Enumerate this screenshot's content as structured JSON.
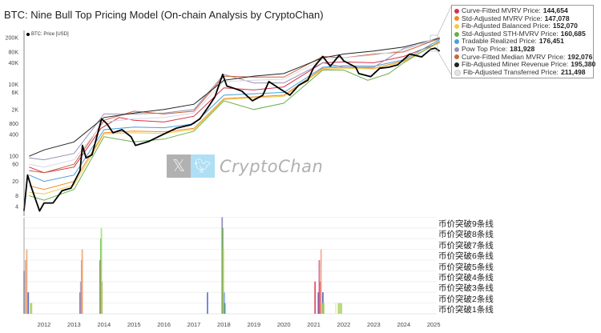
{
  "title": "BTC: Nine Bull Top Pricing Model (On-chain Analysis by CryptoChan)",
  "watermark": {
    "brand": "CryptoChan",
    "x_icon": "x-logo-icon",
    "twitter_icon": "twitter-bird-icon"
  },
  "legend": [
    {
      "label": "Curve-Fitted MVRV Price:",
      "value": "144,654",
      "color": "#d6334a"
    },
    {
      "label": "Std-Adjusted MVRV Price:",
      "value": "147,078",
      "color": "#f08a24"
    },
    {
      "label": "Fib-Adjusted Balanced Price:",
      "value": "152,070",
      "color": "#f2c94c"
    },
    {
      "label": "Std-Adjusted STH-MVRV Price:",
      "value": "160,685",
      "color": "#6ab04c"
    },
    {
      "label": "Tradable Realized Price:",
      "value": "176,451",
      "color": "#4a9fd8"
    },
    {
      "label": "Pow Top Price:",
      "value": "181,928",
      "color": "#9a8fb5"
    },
    {
      "label": "Curve-Fitted Median MVRV Price:",
      "value": "192,076",
      "color": "#c8643c"
    },
    {
      "label": "Fib-Adjusted Miner Revenue Price:",
      "value": "195,380",
      "color": "#222222"
    },
    {
      "label": "Fib-Adjusted Transferred Price:",
      "value": "211,498",
      "color": "#e4e4ee"
    }
  ],
  "chart_data": [
    {
      "type": "line",
      "scale": "log",
      "price_legend": "BTC: Price [USD]",
      "y_ticks": [
        {
          "v": 200000,
          "label": "200K"
        },
        {
          "v": 80000,
          "label": "80K"
        },
        {
          "v": 40000,
          "label": "40K"
        },
        {
          "v": 10000,
          "label": "10K"
        },
        {
          "v": 6000,
          "label": "6K"
        },
        {
          "v": 2000,
          "label": "2K"
        },
        {
          "v": 800,
          "label": "800"
        },
        {
          "v": 400,
          "label": "400"
        },
        {
          "v": 100,
          "label": "100"
        },
        {
          "v": 60,
          "label": "60"
        },
        {
          "v": 20,
          "label": "20"
        },
        {
          "v": 8,
          "label": "8"
        },
        {
          "v": 4,
          "label": "4"
        }
      ],
      "xlim": [
        2011.33,
        2025.2
      ],
      "ylim": [
        1.6,
        280000
      ],
      "price": {
        "name": "BTC: Price [USD]",
        "color": "#000000",
        "points": [
          [
            2011.33,
            3
          ],
          [
            2011.45,
            30
          ],
          [
            2011.6,
            12
          ],
          [
            2011.85,
            3
          ],
          [
            2012.0,
            5
          ],
          [
            2012.3,
            5
          ],
          [
            2012.6,
            11
          ],
          [
            2012.9,
            13
          ],
          [
            2013.2,
            40
          ],
          [
            2013.28,
            200
          ],
          [
            2013.4,
            90
          ],
          [
            2013.6,
            110
          ],
          [
            2013.92,
            1100
          ],
          [
            2014.1,
            800
          ],
          [
            2014.3,
            450
          ],
          [
            2014.6,
            550
          ],
          [
            2014.9,
            350
          ],
          [
            2015.05,
            200
          ],
          [
            2015.5,
            260
          ],
          [
            2015.9,
            380
          ],
          [
            2016.4,
            600
          ],
          [
            2016.9,
            750
          ],
          [
            2017.2,
            1100
          ],
          [
            2017.5,
            2500
          ],
          [
            2017.7,
            4500
          ],
          [
            2017.96,
            19000
          ],
          [
            2018.1,
            9000
          ],
          [
            2018.3,
            8000
          ],
          [
            2018.6,
            6500
          ],
          [
            2018.95,
            3500
          ],
          [
            2019.3,
            5000
          ],
          [
            2019.5,
            12000
          ],
          [
            2019.9,
            7200
          ],
          [
            2020.2,
            5000
          ],
          [
            2020.5,
            9500
          ],
          [
            2020.8,
            13000
          ],
          [
            2021.0,
            30000
          ],
          [
            2021.3,
            60000
          ],
          [
            2021.55,
            32000
          ],
          [
            2021.85,
            65000
          ],
          [
            2022.0,
            45000
          ],
          [
            2022.4,
            30000
          ],
          [
            2022.5,
            20000
          ],
          [
            2022.9,
            16500
          ],
          [
            2023.2,
            28000
          ],
          [
            2023.5,
            30000
          ],
          [
            2023.8,
            35000
          ],
          [
            2024.2,
            70000
          ],
          [
            2024.6,
            58000
          ],
          [
            2024.9,
            95000
          ],
          [
            2025.05,
            102000
          ],
          [
            2025.2,
            84000
          ]
        ]
      },
      "series": [
        {
          "name": "Curve-Fitted MVRV Price",
          "color": "#d6334a",
          "points": [
            [
              2011.5,
              50
            ],
            [
              2012,
              35
            ],
            [
              2013,
              50
            ],
            [
              2013.9,
              600
            ],
            [
              2014.5,
              1200
            ],
            [
              2015,
              1000
            ],
            [
              2016,
              900
            ],
            [
              2017,
              1300
            ],
            [
              2018,
              8000
            ],
            [
              2019,
              7000
            ],
            [
              2020,
              8500
            ],
            [
              2021.3,
              40000
            ],
            [
              2022,
              42000
            ],
            [
              2023,
              40000
            ],
            [
              2024,
              60000
            ],
            [
              2025.2,
              144654
            ]
          ]
        },
        {
          "name": "Std-Adjusted MVRV Price",
          "color": "#f08a24",
          "points": [
            [
              2011.5,
              15
            ],
            [
              2012,
              12
            ],
            [
              2013,
              20
            ],
            [
              2014,
              450
            ],
            [
              2015,
              500
            ],
            [
              2016,
              480
            ],
            [
              2017,
              600
            ],
            [
              2018,
              4000
            ],
            [
              2019,
              4500
            ],
            [
              2020,
              5000
            ],
            [
              2021.3,
              28000
            ],
            [
              2022,
              30000
            ],
            [
              2023,
              28000
            ],
            [
              2024,
              45000
            ],
            [
              2025.2,
              147078
            ]
          ]
        },
        {
          "name": "Fib-Adjusted Balanced Price",
          "color": "#f2c94c",
          "points": [
            [
              2011.5,
              10
            ],
            [
              2012,
              9
            ],
            [
              2013,
              16
            ],
            [
              2014,
              420
            ],
            [
              2015,
              450
            ],
            [
              2016,
              430
            ],
            [
              2017,
              560
            ],
            [
              2018,
              3800
            ],
            [
              2019,
              4200
            ],
            [
              2020,
              4700
            ],
            [
              2021.3,
              26000
            ],
            [
              2022,
              28000
            ],
            [
              2023,
              27000
            ],
            [
              2024,
              43000
            ],
            [
              2025.2,
              152070
            ]
          ]
        },
        {
          "name": "Std-Adjusted STH-MVRV Price",
          "color": "#6ab04c",
          "points": [
            [
              2011.5,
              8
            ],
            [
              2012,
              6
            ],
            [
              2013,
              12
            ],
            [
              2014,
              350
            ],
            [
              2015,
              250
            ],
            [
              2016,
              300
            ],
            [
              2017,
              500
            ],
            [
              2018,
              3500
            ],
            [
              2019,
              2000
            ],
            [
              2020,
              3000
            ],
            [
              2021.3,
              25000
            ],
            [
              2022,
              25000
            ],
            [
              2022.8,
              13000
            ],
            [
              2023.5,
              20000
            ],
            [
              2024,
              40000
            ],
            [
              2025.2,
              160685
            ]
          ]
        },
        {
          "name": "Tradable Realized Price",
          "color": "#4a9fd8",
          "points": [
            [
              2011.5,
              30
            ],
            [
              2012,
              20
            ],
            [
              2013,
              30
            ],
            [
              2014,
              550
            ],
            [
              2015,
              650
            ],
            [
              2016,
              620
            ],
            [
              2017,
              800
            ],
            [
              2018,
              5000
            ],
            [
              2019,
              5500
            ],
            [
              2020,
              6000
            ],
            [
              2021.3,
              30000
            ],
            [
              2022,
              33000
            ],
            [
              2023,
              32000
            ],
            [
              2024,
              48000
            ],
            [
              2025.2,
              176451
            ]
          ]
        },
        {
          "name": "Pow Top Price",
          "color": "#9a8fb5",
          "points": [
            [
              2011.5,
              90
            ],
            [
              2012,
              80
            ],
            [
              2013,
              120
            ],
            [
              2014,
              1500
            ],
            [
              2015,
              1500
            ],
            [
              2016,
              1600
            ],
            [
              2017,
              2000
            ],
            [
              2018,
              19000
            ],
            [
              2019,
              11000
            ],
            [
              2020,
              11000
            ],
            [
              2021.3,
              40000
            ],
            [
              2022,
              30000
            ],
            [
              2023,
              30000
            ],
            [
              2024,
              100000
            ],
            [
              2025.2,
              181928
            ]
          ]
        },
        {
          "name": "Curve-Fitted Median MVRV Price",
          "color": "#c8643c",
          "points": [
            [
              2011.5,
              40
            ],
            [
              2012,
              35
            ],
            [
              2013,
              60
            ],
            [
              2014,
              1000
            ],
            [
              2015,
              1800
            ],
            [
              2016,
              1500
            ],
            [
              2017,
              1800
            ],
            [
              2018,
              17000
            ],
            [
              2019,
              16000
            ],
            [
              2020,
              16000
            ],
            [
              2021.3,
              60000
            ],
            [
              2022,
              55000
            ],
            [
              2023,
              70000
            ],
            [
              2024,
              80000
            ],
            [
              2025.2,
              192076
            ]
          ]
        },
        {
          "name": "Fib-Adjusted Miner Revenue Price",
          "color": "#222222",
          "points": [
            [
              2011.5,
              100
            ],
            [
              2012,
              150
            ],
            [
              2013,
              250
            ],
            [
              2014,
              1200
            ],
            [
              2015,
              1600
            ],
            [
              2016,
              2000
            ],
            [
              2017,
              2800
            ],
            [
              2018,
              13000
            ],
            [
              2019,
              17000
            ],
            [
              2020,
              20000
            ],
            [
              2021.3,
              55000
            ],
            [
              2022,
              70000
            ],
            [
              2023,
              85000
            ],
            [
              2024,
              110000
            ],
            [
              2025.2,
              195380
            ]
          ]
        },
        {
          "name": "Fib-Adjusted Transferred Price",
          "color": "#d8d8e6",
          "points": [
            [
              2011.5,
              60
            ],
            [
              2012,
              50
            ],
            [
              2013,
              80
            ],
            [
              2014,
              900
            ],
            [
              2015,
              1100
            ],
            [
              2016,
              1200
            ],
            [
              2017,
              1600
            ],
            [
              2018,
              12000
            ],
            [
              2019,
              13000
            ],
            [
              2020,
              14000
            ],
            [
              2021.3,
              50000
            ],
            [
              2022,
              55000
            ],
            [
              2023,
              65000
            ],
            [
              2024,
              90000
            ],
            [
              2025.2,
              211498
            ]
          ]
        }
      ]
    },
    {
      "type": "bar",
      "x_ticks": [
        "2012",
        "2013",
        "2014",
        "2015",
        "2016",
        "2017",
        "2018",
        "2019",
        "2020",
        "2021",
        "2022",
        "2023",
        "2024",
        "2025"
      ],
      "levels": [
        "币价突破9条线",
        "币价突破8条线",
        "币价突破7条线",
        "币价突破6条线",
        "币价突破5条线",
        "币价突破4条线",
        "币价突破3条线",
        "币价突破2条线",
        "币价突破1条线"
      ],
      "bars": [
        {
          "date": 2011.33,
          "level": 4,
          "color": "#8a8fb0"
        },
        {
          "date": 2011.38,
          "level": 5,
          "color": "#e59aa8"
        },
        {
          "date": 2011.42,
          "level": 6,
          "color": "#f0a060"
        },
        {
          "date": 2011.47,
          "level": 2,
          "color": "#4a55c0"
        },
        {
          "date": 2011.55,
          "level": 1,
          "color": "#a8d060"
        },
        {
          "date": 2011.58,
          "level": 1,
          "color": "#a8d060"
        },
        {
          "date": 2013.2,
          "level": 2,
          "color": "#7a4aa8"
        },
        {
          "date": 2013.22,
          "level": 3,
          "color": "#a89ab8"
        },
        {
          "date": 2013.25,
          "level": 5,
          "color": "#d08a9a"
        },
        {
          "date": 2013.27,
          "level": 6,
          "color": "#f0a060"
        },
        {
          "date": 2013.87,
          "level": 5,
          "color": "#d6334a"
        },
        {
          "date": 2013.89,
          "level": 7,
          "color": "#6ab04c"
        },
        {
          "date": 2013.91,
          "level": 8,
          "color": "#9ae070"
        },
        {
          "date": 2013.93,
          "level": 3,
          "color": "#b0c060"
        },
        {
          "date": 2017.45,
          "level": 2,
          "color": "#4a6ad0"
        },
        {
          "date": 2017.94,
          "level": 9,
          "color": "#8a7ab8"
        },
        {
          "date": 2017.96,
          "level": 8,
          "color": "#6ab04c"
        },
        {
          "date": 2017.98,
          "level": 6,
          "color": "#c0d040"
        },
        {
          "date": 2018.01,
          "level": 2,
          "color": "#7aa0e0"
        },
        {
          "date": 2018.03,
          "level": 1,
          "color": "#4a9a4c"
        },
        {
          "date": 2021.04,
          "level": 3,
          "color": "#d6334a"
        },
        {
          "date": 2021.15,
          "level": 2,
          "color": "#6a3a90"
        },
        {
          "date": 2021.18,
          "level": 5,
          "color": "#d05a90"
        },
        {
          "date": 2021.21,
          "level": 3,
          "color": "#e04a5a"
        },
        {
          "date": 2021.24,
          "level": 6,
          "color": "#f0a080"
        },
        {
          "date": 2021.3,
          "level": 2,
          "color": "#4a55c0"
        },
        {
          "date": 2021.28,
          "level": 1,
          "color": "#a8d060"
        },
        {
          "date": 2021.33,
          "level": 1,
          "color": "#a8d060"
        },
        {
          "date": 2021.73,
          "level": 1,
          "color": "#e8f0a0"
        },
        {
          "date": 2021.82,
          "level": 1,
          "color": "#a8d060"
        },
        {
          "date": 2021.87,
          "level": 1,
          "color": "#a8d060"
        },
        {
          "date": 2021.92,
          "level": 1,
          "color": "#a8d060"
        }
      ]
    }
  ]
}
